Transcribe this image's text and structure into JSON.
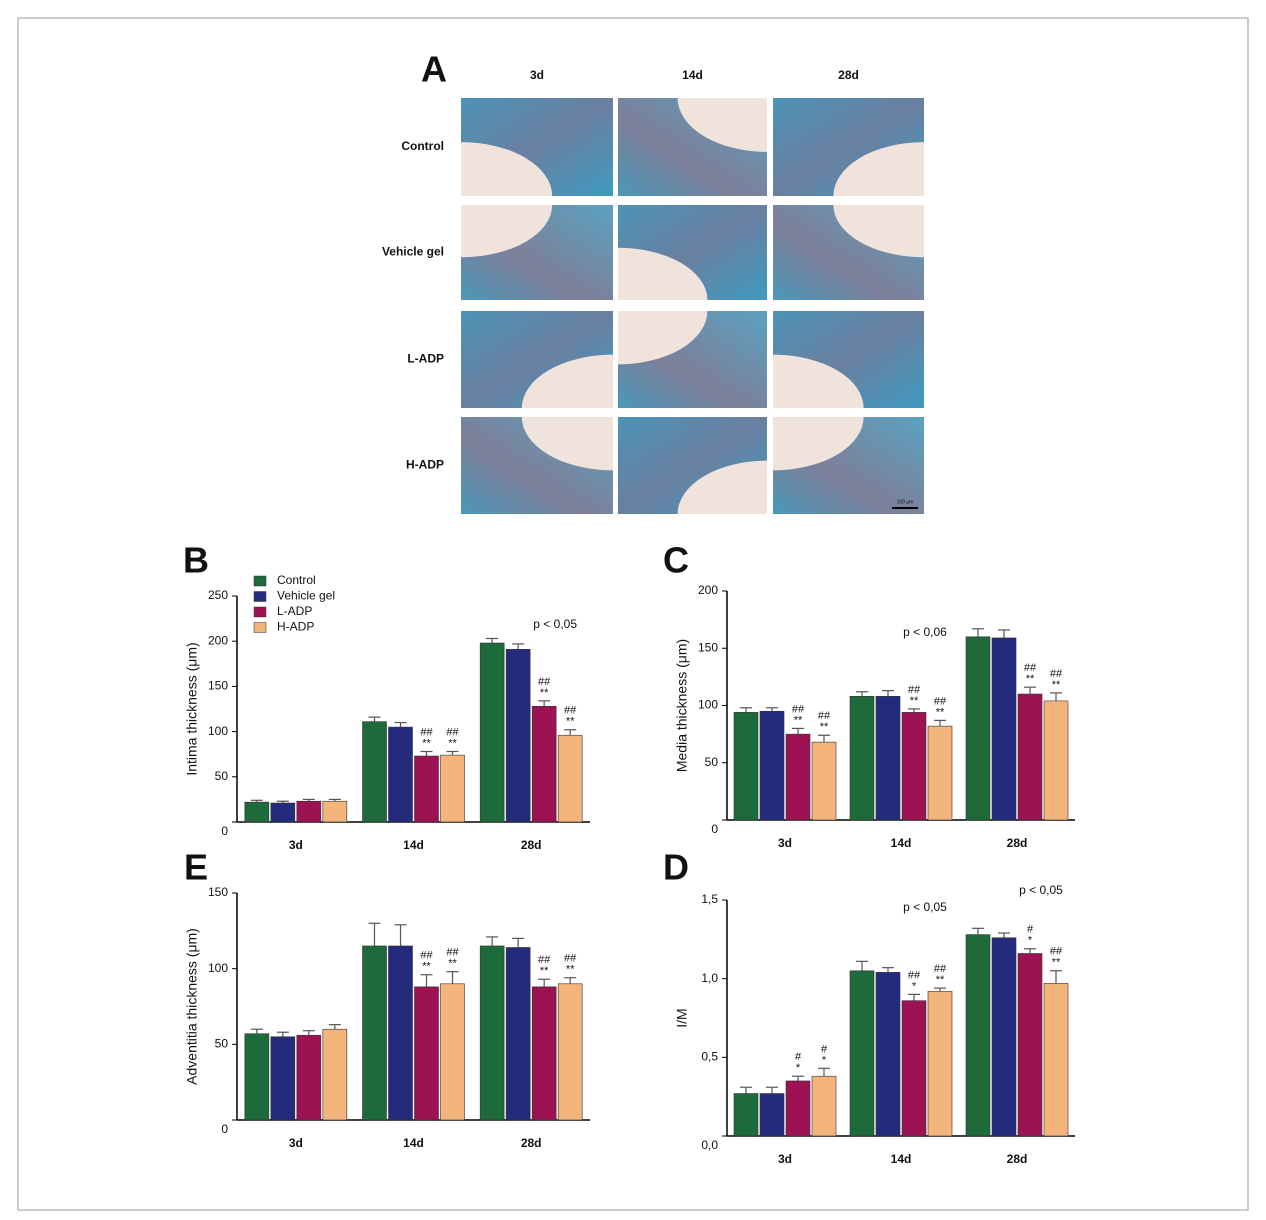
{
  "panel_a": {
    "label": "A",
    "columns": [
      "3d",
      "14d",
      "28d"
    ],
    "rows": [
      "Control",
      "Vehicle gel",
      "L-ADP",
      "H-ADP"
    ],
    "scale_bar": "100 μm"
  },
  "chart_data": [
    {
      "type": "bar",
      "panel": "B",
      "ylabel": "Intima thickness (μm)",
      "categories": [
        "3d",
        "14d",
        "28d"
      ],
      "ylim": [
        0,
        250
      ],
      "yticks": [
        0,
        50,
        100,
        150,
        200,
        250
      ],
      "legend": true,
      "series": [
        {
          "name": "Control",
          "color": "#1d6a3a",
          "values": [
            22,
            111,
            198
          ],
          "errors": [
            2,
            5,
            5
          ],
          "sig": [
            null,
            null,
            null
          ]
        },
        {
          "name": "Vehicle gel",
          "color": "#252b7c",
          "values": [
            21,
            105,
            191
          ],
          "errors": [
            2,
            5,
            6
          ],
          "sig": [
            null,
            null,
            null
          ]
        },
        {
          "name": "L-ADP",
          "color": "#9c1252",
          "values": [
            23,
            73,
            128
          ],
          "errors": [
            2,
            5,
            6
          ],
          "sig": [
            null,
            [
              "##",
              "**"
            ],
            [
              "##",
              "**"
            ]
          ]
        },
        {
          "name": "H-ADP",
          "color": "#f3b57c",
          "values": [
            23,
            74,
            96
          ],
          "errors": [
            2,
            4,
            6
          ],
          "sig": [
            null,
            [
              "##",
              "**"
            ],
            [
              "##",
              "**"
            ]
          ]
        }
      ],
      "annotations": [
        {
          "text": "p < 0,05",
          "category": "28d"
        }
      ]
    },
    {
      "type": "bar",
      "panel": "C",
      "ylabel": "Media thickness (μm)",
      "categories": [
        "3d",
        "14d",
        "28d"
      ],
      "ylim": [
        0,
        200
      ],
      "yticks": [
        0,
        50,
        100,
        150,
        200
      ],
      "series": [
        {
          "name": "Control",
          "color": "#1d6a3a",
          "values": [
            94,
            108,
            160
          ],
          "errors": [
            4,
            4,
            7
          ],
          "sig": [
            null,
            null,
            null
          ]
        },
        {
          "name": "Vehicle gel",
          "color": "#252b7c",
          "values": [
            95,
            108,
            159
          ],
          "errors": [
            3,
            5,
            7
          ],
          "sig": [
            null,
            null,
            null
          ]
        },
        {
          "name": "L-ADP",
          "color": "#9c1252",
          "values": [
            75,
            94,
            110
          ],
          "errors": [
            5,
            3,
            6
          ],
          "sig": [
            [
              "##",
              "**"
            ],
            [
              "##",
              "**"
            ],
            [
              "##",
              "**"
            ]
          ]
        },
        {
          "name": "H-ADP",
          "color": "#f3b57c",
          "values": [
            68,
            82,
            104
          ],
          "errors": [
            6,
            5,
            7
          ],
          "sig": [
            [
              "##",
              "**"
            ],
            [
              "##",
              "**"
            ],
            [
              "##",
              "**"
            ]
          ]
        }
      ],
      "annotations": [
        {
          "text": "p < 0,06",
          "category": "14d"
        }
      ]
    },
    {
      "type": "bar",
      "panel": "E",
      "ylabel": "Adventitia thickness (μm)",
      "categories": [
        "3d",
        "14d",
        "28d"
      ],
      "ylim": [
        0,
        150
      ],
      "yticks": [
        0,
        50,
        100,
        150
      ],
      "series": [
        {
          "name": "Control",
          "color": "#1d6a3a",
          "values": [
            57,
            115,
            115
          ],
          "errors": [
            3,
            15,
            6
          ],
          "sig": [
            null,
            null,
            null
          ]
        },
        {
          "name": "Vehicle gel",
          "color": "#252b7c",
          "values": [
            55,
            115,
            114
          ],
          "errors": [
            3,
            14,
            6
          ],
          "sig": [
            null,
            null,
            null
          ]
        },
        {
          "name": "L-ADP",
          "color": "#9c1252",
          "values": [
            56,
            88,
            88
          ],
          "errors": [
            3,
            8,
            5
          ],
          "sig": [
            null,
            [
              "##",
              "**"
            ],
            [
              "##",
              "**"
            ]
          ]
        },
        {
          "name": "H-ADP",
          "color": "#f3b57c",
          "values": [
            60,
            90,
            90
          ],
          "errors": [
            3,
            8,
            4
          ],
          "sig": [
            null,
            [
              "##",
              "**"
            ],
            [
              "##",
              "**"
            ]
          ]
        }
      ],
      "annotations": []
    },
    {
      "type": "bar",
      "panel": "D",
      "ylabel": "I/M",
      "categories": [
        "3d",
        "14d",
        "28d"
      ],
      "ylim": [
        0,
        1.5
      ],
      "yticks": [
        {
          "value": 0,
          "label": "0,0"
        },
        {
          "value": 0.5,
          "label": "0,5"
        },
        {
          "value": 1,
          "label": "1,0"
        },
        {
          "value": 1.5,
          "label": "1,5"
        }
      ],
      "series": [
        {
          "name": "Control",
          "color": "#1d6a3a",
          "values": [
            0.27,
            1.05,
            1.28
          ],
          "errors": [
            0.04,
            0.06,
            0.04
          ],
          "sig": [
            null,
            null,
            null
          ]
        },
        {
          "name": "Vehicle gel",
          "color": "#252b7c",
          "values": [
            0.27,
            1.04,
            1.26
          ],
          "errors": [
            0.04,
            0.03,
            0.03
          ],
          "sig": [
            null,
            null,
            null
          ]
        },
        {
          "name": "L-ADP",
          "color": "#9c1252",
          "values": [
            0.35,
            0.86,
            1.16
          ],
          "errors": [
            0.03,
            0.04,
            0.03
          ],
          "sig": [
            [
              "#",
              "*"
            ],
            [
              "##",
              "*"
            ],
            [
              "#",
              "*"
            ]
          ]
        },
        {
          "name": "H-ADP",
          "color": "#f3b57c",
          "values": [
            0.38,
            0.92,
            0.97
          ],
          "errors": [
            0.05,
            0.02,
            0.08
          ],
          "sig": [
            [
              "#",
              "*"
            ],
            [
              "##",
              "**"
            ],
            [
              "##",
              "**"
            ]
          ]
        }
      ],
      "annotations": [
        {
          "text": "p < 0,05",
          "category": "14d"
        },
        {
          "text": "p < 0,05",
          "category": "28d"
        }
      ]
    }
  ]
}
